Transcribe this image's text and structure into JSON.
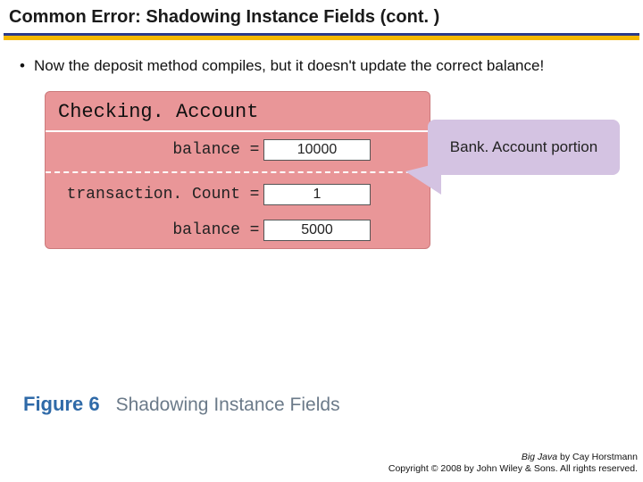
{
  "title": "Common Error: Shadowing Instance Fields  (cont. )",
  "bullet": "Now the deposit method compiles, but it doesn't update the correct balance!",
  "box": {
    "header": "Checking. Account",
    "top_section": {
      "field1": {
        "label": "balance",
        "eq": "=",
        "value": "10000"
      }
    },
    "bottom_section": {
      "field1": {
        "label": "transaction. Count",
        "eq": "=",
        "value": "1"
      },
      "field2": {
        "label": "balance",
        "eq": "=",
        "value": "5000"
      }
    }
  },
  "bubble": "Bank. Account portion",
  "figure": {
    "num": "Figure 6",
    "caption": "Shadowing Instance Fields"
  },
  "footer": {
    "line1_ital": "Big Java",
    "line1_rest": " by Cay Horstmann",
    "line2": "Copyright © 2008 by John Wiley & Sons.  All rights reserved."
  },
  "colors": {
    "underline_blue": "#2a3a8a",
    "underline_yellow": "#f5b800",
    "box_fill": "#e99698",
    "box_border": "#cc7a7c",
    "bubble_fill": "#d4c3e2",
    "fig_num": "#2f6aa8",
    "fig_text": "#6b7a89"
  }
}
